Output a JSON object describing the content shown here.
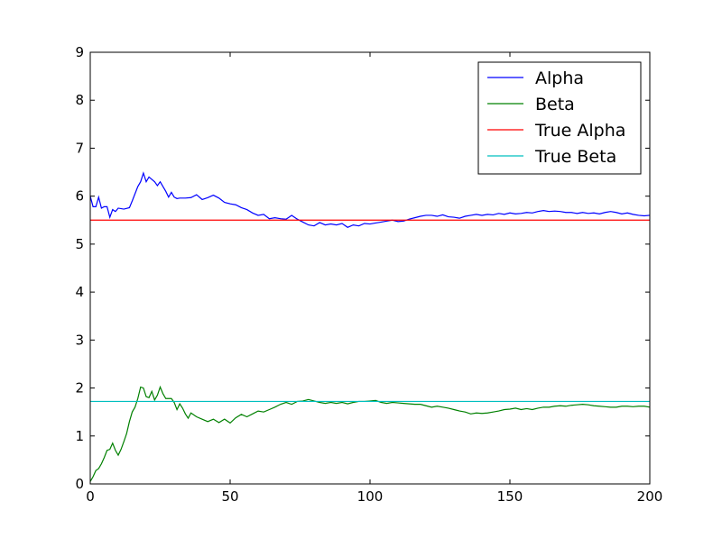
{
  "chart_data": {
    "type": "line",
    "title": "",
    "xlabel": "",
    "ylabel": "",
    "xlim": [
      0,
      200
    ],
    "ylim": [
      0,
      9
    ],
    "xticks": [
      "0",
      "50",
      "100",
      "150",
      "200"
    ],
    "yticks": [
      "0",
      "1",
      "2",
      "3",
      "4",
      "5",
      "6",
      "7",
      "8",
      "9"
    ],
    "grid": false,
    "legend_position": "top-right",
    "series": [
      {
        "name": "Alpha",
        "color": "#0000ff",
        "x": [
          0,
          1,
          2,
          3,
          4,
          5,
          6,
          7,
          8,
          9,
          10,
          12,
          14,
          15,
          16,
          17,
          18,
          19,
          20,
          21,
          22,
          23,
          24,
          25,
          26,
          27,
          28,
          29,
          30,
          31,
          32,
          34,
          36,
          38,
          40,
          42,
          44,
          46,
          48,
          50,
          52,
          54,
          56,
          58,
          60,
          62,
          64,
          66,
          68,
          70,
          72,
          74,
          76,
          78,
          80,
          82,
          84,
          86,
          88,
          90,
          92,
          94,
          96,
          98,
          100,
          102,
          104,
          106,
          108,
          110,
          112,
          114,
          116,
          118,
          120,
          122,
          124,
          126,
          128,
          130,
          132,
          134,
          136,
          138,
          140,
          142,
          144,
          146,
          148,
          150,
          152,
          154,
          156,
          158,
          160,
          162,
          164,
          166,
          168,
          170,
          172,
          174,
          176,
          178,
          180,
          182,
          184,
          186,
          188,
          190,
          192,
          194,
          196,
          198,
          200
        ],
        "y": [
          6.0,
          5.78,
          5.78,
          5.98,
          5.75,
          5.78,
          5.78,
          5.56,
          5.72,
          5.68,
          5.75,
          5.73,
          5.76,
          5.9,
          6.05,
          6.2,
          6.3,
          6.48,
          6.3,
          6.4,
          6.35,
          6.3,
          6.22,
          6.3,
          6.2,
          6.1,
          5.98,
          6.08,
          5.98,
          5.95,
          5.96,
          5.96,
          5.97,
          6.03,
          5.93,
          5.97,
          6.02,
          5.96,
          5.87,
          5.84,
          5.82,
          5.76,
          5.72,
          5.65,
          5.6,
          5.62,
          5.53,
          5.55,
          5.53,
          5.52,
          5.6,
          5.52,
          5.46,
          5.4,
          5.38,
          5.45,
          5.4,
          5.42,
          5.4,
          5.43,
          5.35,
          5.4,
          5.38,
          5.43,
          5.42,
          5.44,
          5.46,
          5.48,
          5.5,
          5.47,
          5.48,
          5.52,
          5.55,
          5.58,
          5.6,
          5.6,
          5.58,
          5.61,
          5.57,
          5.56,
          5.54,
          5.58,
          5.6,
          5.62,
          5.6,
          5.62,
          5.61,
          5.64,
          5.62,
          5.65,
          5.63,
          5.64,
          5.66,
          5.65,
          5.68,
          5.7,
          5.68,
          5.69,
          5.68,
          5.66,
          5.66,
          5.64,
          5.66,
          5.64,
          5.65,
          5.63,
          5.66,
          5.68,
          5.66,
          5.63,
          5.65,
          5.62,
          5.6,
          5.59,
          5.6
        ]
      },
      {
        "name": "Beta",
        "color": "#008000",
        "x": [
          0,
          1,
          2,
          3,
          4,
          5,
          6,
          7,
          8,
          9,
          10,
          11,
          12,
          13,
          14,
          15,
          16,
          17,
          18,
          19,
          20,
          21,
          22,
          23,
          24,
          25,
          26,
          27,
          28,
          29,
          30,
          31,
          32,
          33,
          34,
          35,
          36,
          38,
          40,
          42,
          44,
          46,
          48,
          50,
          52,
          54,
          56,
          58,
          60,
          62,
          64,
          66,
          68,
          70,
          72,
          74,
          76,
          78,
          80,
          82,
          84,
          86,
          88,
          90,
          92,
          94,
          96,
          98,
          100,
          102,
          104,
          106,
          108,
          110,
          112,
          114,
          116,
          118,
          120,
          122,
          124,
          126,
          128,
          130,
          132,
          134,
          136,
          138,
          140,
          142,
          144,
          146,
          148,
          150,
          152,
          154,
          156,
          158,
          160,
          162,
          164,
          166,
          168,
          170,
          172,
          174,
          176,
          178,
          180,
          182,
          184,
          186,
          188,
          190,
          192,
          194,
          196,
          198,
          200
        ],
        "y": [
          0.05,
          0.15,
          0.28,
          0.32,
          0.42,
          0.55,
          0.7,
          0.72,
          0.85,
          0.7,
          0.6,
          0.72,
          0.88,
          1.05,
          1.3,
          1.5,
          1.6,
          1.78,
          2.02,
          2.0,
          1.82,
          1.8,
          1.93,
          1.75,
          1.85,
          2.02,
          1.88,
          1.78,
          1.78,
          1.78,
          1.7,
          1.55,
          1.67,
          1.58,
          1.46,
          1.37,
          1.48,
          1.4,
          1.35,
          1.3,
          1.35,
          1.28,
          1.35,
          1.27,
          1.38,
          1.45,
          1.4,
          1.46,
          1.52,
          1.5,
          1.55,
          1.6,
          1.66,
          1.7,
          1.66,
          1.72,
          1.73,
          1.76,
          1.73,
          1.7,
          1.68,
          1.7,
          1.68,
          1.7,
          1.67,
          1.7,
          1.72,
          1.72,
          1.73,
          1.74,
          1.7,
          1.68,
          1.7,
          1.69,
          1.68,
          1.67,
          1.66,
          1.66,
          1.63,
          1.6,
          1.62,
          1.6,
          1.58,
          1.55,
          1.52,
          1.5,
          1.46,
          1.48,
          1.47,
          1.48,
          1.5,
          1.52,
          1.55,
          1.56,
          1.58,
          1.55,
          1.57,
          1.55,
          1.58,
          1.6,
          1.6,
          1.62,
          1.63,
          1.62,
          1.64,
          1.65,
          1.66,
          1.65,
          1.63,
          1.62,
          1.61,
          1.6,
          1.6,
          1.62,
          1.62,
          1.61,
          1.62,
          1.62,
          1.6
        ]
      },
      {
        "name": "True Alpha",
        "color": "#ff0000",
        "x": [
          0,
          200
        ],
        "y": [
          5.5,
          5.5
        ]
      },
      {
        "name": "True Beta",
        "color": "#00bfbf",
        "x": [
          0,
          200
        ],
        "y": [
          1.72,
          1.72
        ]
      }
    ]
  }
}
